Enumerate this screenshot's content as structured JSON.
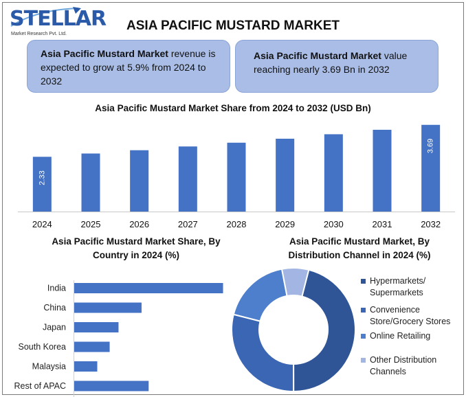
{
  "brand": {
    "logo_text": "STELLAR",
    "logo_subtext": "Market Research Pvt. Ltd."
  },
  "title": "ASIA PACIFIC MUSTARD MARKET",
  "info_boxes": [
    {
      "bold": "Asia Pacific Mustard Market",
      "text": " revenue is expected to grow at 5.9% from 2024 to 2032"
    },
    {
      "bold": "Asia Pacific Mustard Market",
      "text": " value reaching nearly 3.69 Bn in 2032"
    }
  ],
  "colors": {
    "bar": "#4472c4",
    "box": "#a9bde6",
    "donut": [
      "#2f5597",
      "#3a66b3",
      "#4e7fcc",
      "#a3b5e2"
    ]
  },
  "chart_data": [
    {
      "type": "bar",
      "title": "Asia Pacific Mustard Market Share from 2024 to 2032 (USD Bn)",
      "categories": [
        "2024",
        "2025",
        "2026",
        "2027",
        "2028",
        "2029",
        "2030",
        "2031",
        "2032"
      ],
      "values": [
        2.33,
        2.47,
        2.61,
        2.77,
        2.93,
        3.1,
        3.29,
        3.48,
        3.69
      ],
      "data_labels": {
        "2024": "2.33",
        "2032": "3.69"
      },
      "ylim": [
        0,
        3.8
      ],
      "grid": false
    },
    {
      "type": "bar",
      "orientation": "horizontal",
      "title": "Asia Pacific Mustard Market Share, By Country in 2024 (%)",
      "categories": [
        "India",
        "China",
        "Japan",
        "South Korea",
        "Malaysia",
        "Rest of APAC"
      ],
      "values": [
        42,
        19,
        12.5,
        10,
        6.5,
        21
      ],
      "xlim": [
        0,
        45
      ],
      "grid": false
    },
    {
      "type": "pie",
      "donut": true,
      "title": "Asia Pacific Mustard Market, By Distribution Channel in 2024 (%)",
      "categories": [
        "Hypermarkets/ Supermarkets",
        "Convenience Store/Grocery Stores",
        "Online Retailing",
        "Other Distribution Channels"
      ],
      "values": [
        46,
        29,
        18,
        7
      ],
      "legend": "right"
    }
  ]
}
